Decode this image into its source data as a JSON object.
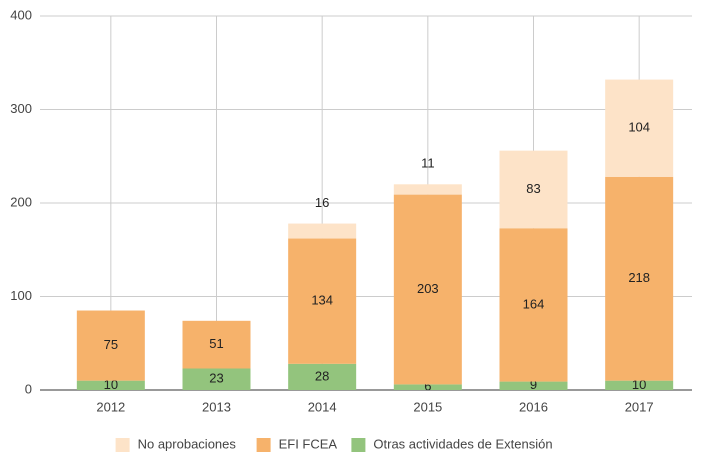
{
  "chart_data": {
    "type": "stacked_bar",
    "categories": [
      "2012",
      "2013",
      "2014",
      "2015",
      "2016",
      "2017"
    ],
    "series": [
      {
        "name": "Otras actividades de Extensión",
        "color": "#93c47d",
        "values": [
          10,
          23,
          28,
          6,
          9,
          10
        ]
      },
      {
        "name": "EFI FCEA",
        "color": "#f6b26b",
        "values": [
          75,
          51,
          134,
          203,
          164,
          218
        ]
      },
      {
        "name": "No aprobaciones",
        "color": "#fde3c8",
        "values": [
          null,
          null,
          16,
          11,
          83,
          104
        ]
      }
    ],
    "ylim": [
      0,
      400
    ],
    "yticks": [
      0,
      100,
      200,
      300,
      400
    ],
    "grid": true,
    "legend": "bottom"
  }
}
